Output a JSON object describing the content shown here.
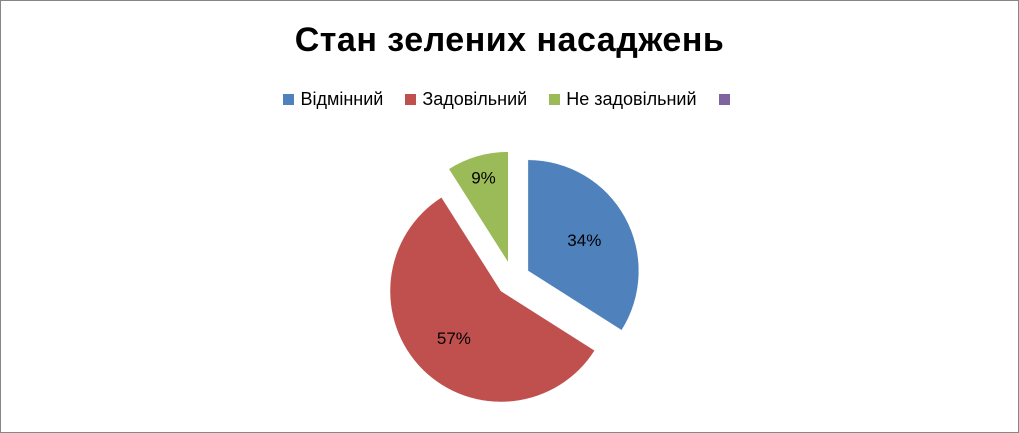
{
  "chart_data": {
    "type": "pie",
    "title": "Стан зелених насаджень",
    "legend_position": "top",
    "categories": [
      "Відмінний",
      "Задовільний",
      "Не задовільний",
      ""
    ],
    "values": [
      34,
      57,
      9,
      0
    ],
    "labels": [
      "34%",
      "57%",
      "9%",
      ""
    ],
    "colors": [
      "#4F81BD",
      "#C0504D",
      "#9BBB59",
      "#8064A2"
    ],
    "exploded": true
  }
}
